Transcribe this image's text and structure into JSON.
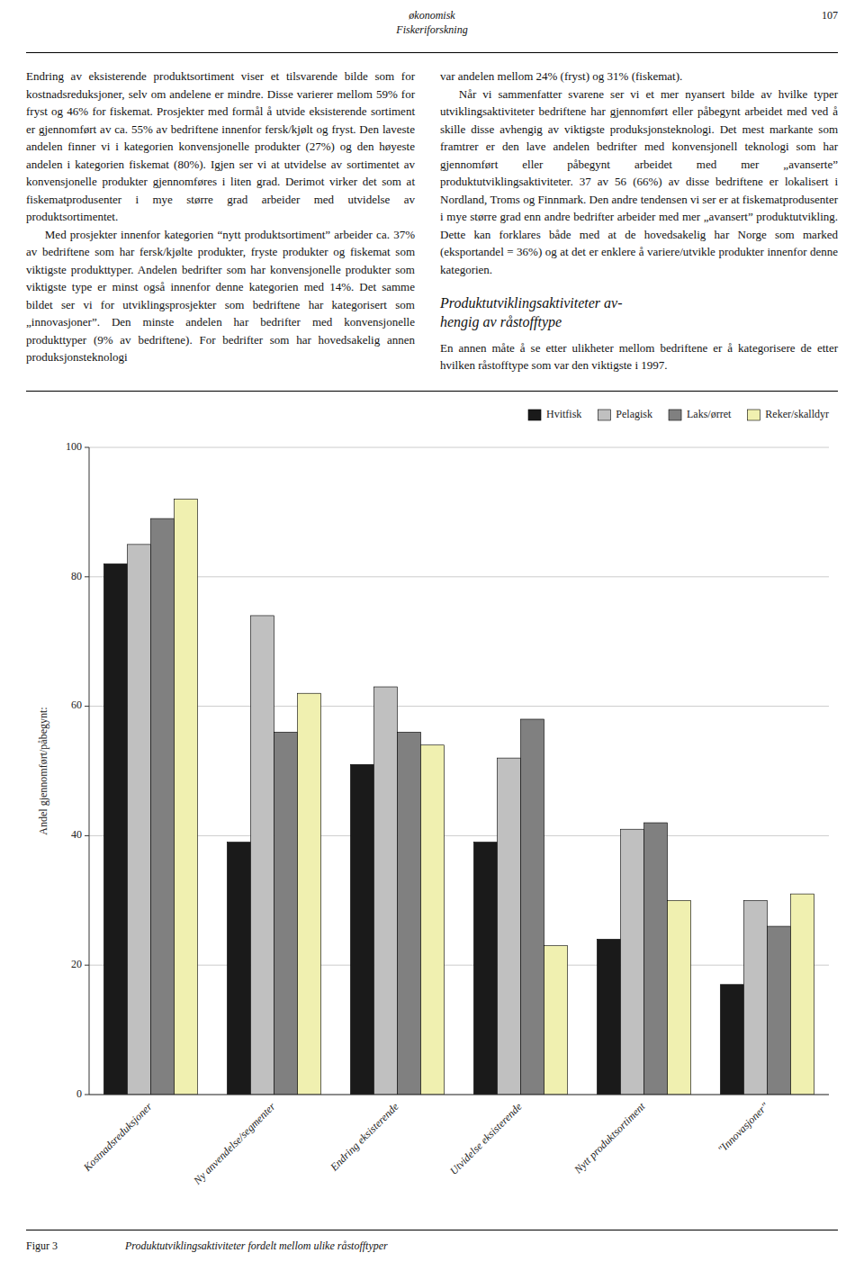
{
  "page": {
    "header": "økonomisk\nFiskeriforskning",
    "page_number": "107",
    "left_column": [
      "Endring av eksisterende produktsortiment viser et tilsvarende bilde som for kostnadsreduksjoner, selv om andelene er mindre. Disse varierer mellom 59% for fryst og 46% for fiskemat. Prosjekter med formål å utvide eksisterende sortiment er gjennomført av ca. 55% av bedriftene innenfor fersk/kjølt og fryst. Den laveste andelen finner vi i kategorien konvensjonelle produkter (27%) og den høyeste andelen i kategorien fiskemat (80%). Igjen ser vi at utvidelse av sortimentet av konvensjonelle produkter gjennomføres i liten grad. Derimot virker det som at fiskematprodusenter i mye større grad arbeider med utvidelse av produktsortimentet.",
      "Med prosjekter innenfor kategorien “nytt produktsortiment” arbeider ca. 37% av bedriftene som har fersk/kjølte produkter, fryste produkter og fiskemat som viktigste produkttyper. Andelen bedrifter som har konvensjonelle produkter som viktigste type er minst også innenfor denne kategorien med 14%. Det samme bildet ser vi for utviklingsprosjekter som bedriftene har kategorisert som „innovasjoner”. Den minste andelen har bedrifter med konvensjonelle produkttyper (9% av bedriftene). For bedrifter som har hovedsakelig annen produksjonsteknologi"
    ],
    "right_column": [
      "var andelen mellom 24% (fryst) og 31% (fiskemat).",
      "Når vi sammenfatter svarene ser vi et mer nyansert bilde av hvilke typer utviklingsaktiviteter bedriftene har gjennomført eller påbegynt arbeidet med ved å skille disse avhengig av viktigste produksjonsteknologi. Det mest markante som framtrer er den lave andelen bedrifter med konvensjonell teknologi som har gjennomført eller påbegynt arbeidet med mer „avanserte” produktutviklingsaktiviteter. 37 av 56 (66%) av disse bedriftene er lokalisert i Nordland, Troms og Finnmark. Den andre tendensen vi ser er at fiskematprodusenter i mye større grad enn andre bedrifter arbeider med mer „avansert” produktutvikling. Dette kan forklares både med at de hovedsakelig har Norge som marked (eksportandel = 36%) og at det er enklere å variere/utvikle produkter innenfor denne kategorien."
    ],
    "heading": "Produktutviklingsaktiviteter av-\nhengig av råstofftype",
    "intro": "En annen måte å se etter ulikheter mellom bedriftene er å kategorisere de etter hvilken råstofftype som var den viktigste i 1997.",
    "caption_label": "Figur 3",
    "caption_text": "Produktutviklingsaktiviteter fordelt mellom ulike råstofftyper"
  },
  "chart_data": {
    "type": "bar",
    "categories": [
      "Kostnadsreduksjoner",
      "Ny anvendelse/segmenter",
      "Endring eksisterende",
      "Utvidelse eksisterende",
      "Nytt produktsortiment",
      "\"Innovasjoner\""
    ],
    "series": [
      {
        "name": "Hvitfisk",
        "color": "#1a1a1a",
        "values": [
          82,
          39,
          51,
          39,
          24,
          17
        ]
      },
      {
        "name": "Pelagisk",
        "color": "#c0c0c0",
        "values": [
          85,
          74,
          63,
          52,
          41,
          30
        ]
      },
      {
        "name": "Laks/ørret",
        "color": "#808080",
        "values": [
          89,
          56,
          56,
          58,
          42,
          26
        ]
      },
      {
        "name": "Reker/skalldyr",
        "color": "#f0f0b0",
        "values": [
          92,
          62,
          54,
          23,
          30,
          31
        ]
      }
    ],
    "ylabel": "Andel gjennomført/påbegynt:",
    "ylim": [
      0,
      100
    ],
    "yticks": [
      0,
      20,
      40,
      60,
      80,
      100
    ],
    "grid": true,
    "legend": "upper right"
  }
}
